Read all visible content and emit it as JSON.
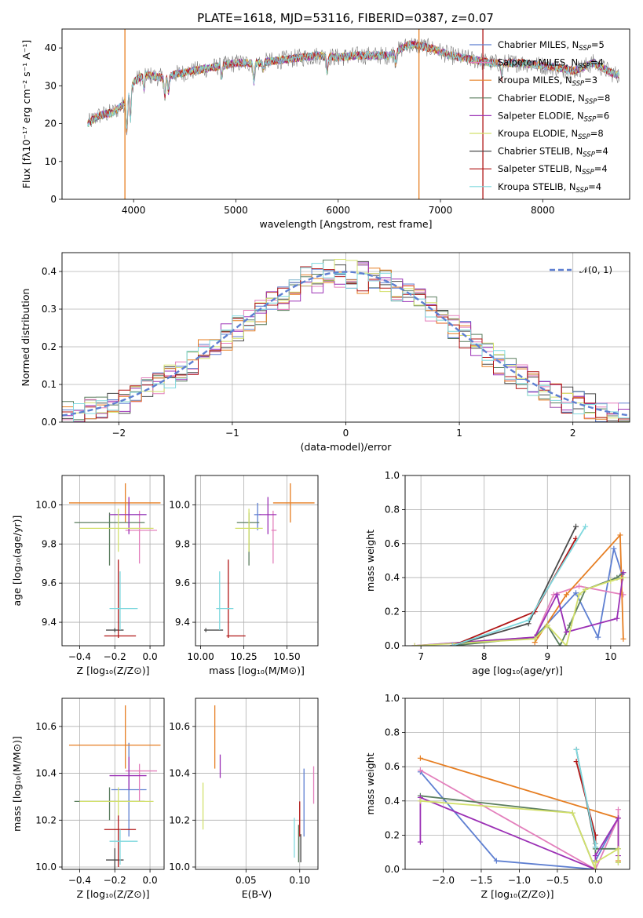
{
  "figure_title": "PLATE=1618, MJD=53116, FIBERID=0387, z=0.07",
  "colors": [
    "#5e7fd1",
    "#e37fbc",
    "#e67e22",
    "#5a7d5e",
    "#9b30b5",
    "#d2e06c",
    "#4a4a4a",
    "#b01515",
    "#7fd8de"
  ],
  "legend_entries": [
    {
      "pre": "Chabrier MILES, N",
      "sub": "SSP",
      "post": "=5"
    },
    {
      "pre": "Salpeter MILES, N",
      "sub": "SSP",
      "post": "=4"
    },
    {
      "pre": "Kroupa MILES, N",
      "sub": "SSP",
      "post": "=3"
    },
    {
      "pre": "Chabrier ELODIE, N",
      "sub": "SSP",
      "post": "=8"
    },
    {
      "pre": "Salpeter ELODIE, N",
      "sub": "SSP",
      "post": "=6"
    },
    {
      "pre": "Kroupa ELODIE, N",
      "sub": "SSP",
      "post": "=8"
    },
    {
      "pre": "Chabrier STELIB, N",
      "sub": "SSP",
      "post": "=4"
    },
    {
      "pre": "Salpeter STELIB, N",
      "sub": "SSP",
      "post": "=4"
    },
    {
      "pre": "Kroupa STELIB, N",
      "sub": "SSP",
      "post": "=4"
    }
  ],
  "chart_data": [
    {
      "id": "spectrum",
      "type": "line",
      "xlabel": "wavelength [Angstrom, rest frame]",
      "ylabel": "Flux [fλ10⁻¹⁷ erg cm⁻² s⁻¹ A⁻¹]",
      "xlim": [
        3300,
        8850
      ],
      "ylim": [
        0,
        45
      ],
      "xticks": [
        4000,
        5000,
        6000,
        7000,
        8000
      ],
      "yticks": [
        0,
        10,
        20,
        30,
        40
      ],
      "data_series": {
        "name": "data",
        "color": "#808080"
      },
      "continuum": {
        "x": [
          3550,
          3650,
          3800,
          3900,
          4000,
          4100,
          4300,
          4400,
          4600,
          4800,
          5000,
          5200,
          5500,
          5800,
          6000,
          6200,
          6500,
          6700,
          6900,
          7100,
          7300,
          7500,
          7800,
          8100,
          8300,
          8500,
          8700
        ],
        "y": [
          20,
          22,
          23,
          25,
          31,
          33,
          32,
          33,
          34,
          35,
          36,
          36,
          37,
          38,
          37.5,
          38,
          38,
          41,
          40,
          38,
          37,
          36,
          36,
          35,
          34,
          36,
          33
        ]
      },
      "absorption_lines": [
        {
          "x": 3934,
          "depth": 9
        },
        {
          "x": 3969,
          "depth": 8
        },
        {
          "x": 4101,
          "depth": 4
        },
        {
          "x": 4305,
          "depth": 5
        },
        {
          "x": 4340,
          "depth": 4
        },
        {
          "x": 4861,
          "depth": 3
        },
        {
          "x": 5175,
          "depth": 5
        },
        {
          "x": 5270,
          "depth": 2
        },
        {
          "x": 5892,
          "depth": 4
        },
        {
          "x": 6563,
          "depth": 3
        },
        {
          "x": 7600,
          "depth": 4
        }
      ],
      "model_spikes": [
        {
          "x": 3915,
          "color": "#e67e22"
        },
        {
          "x": 6790,
          "color": "#e67e22"
        },
        {
          "x": 7415,
          "color": "#b01515"
        }
      ]
    },
    {
      "id": "residuals",
      "type": "histogram",
      "xlabel": "(data-model)/error",
      "ylabel": "Normed distribution",
      "xlim": [
        -2.5,
        2.5
      ],
      "ylim": [
        0,
        0.45
      ],
      "xticks": [
        -2,
        -1,
        0,
        1,
        2
      ],
      "yticks": [
        0.0,
        0.1,
        0.2,
        0.3,
        0.4
      ],
      "bins": 50,
      "normal_curve": {
        "label": "𝒩(0, 1)",
        "color": "#5e7fd1",
        "mu": 0,
        "sigma": 1
      }
    },
    {
      "id": "age_vs_Z",
      "type": "errorbar",
      "xlabel": "Z [log₁₀(Z/Z⊙)]",
      "ylabel": "age  [log₁₀(age/yr)]",
      "xlim": [
        -0.5,
        0.08
      ],
      "ylim": [
        9.28,
        10.15
      ],
      "xticks": [
        -0.4,
        -0.2,
        0.0
      ],
      "yticks": [
        9.4,
        9.6,
        9.8,
        10.0
      ],
      "points": [
        {
          "x": -0.12,
          "xerr": [
            0.1,
            0.1
          ],
          "y": 9.95,
          "yerr": [
            0.08,
            0.06
          ]
        },
        {
          "x": -0.06,
          "xerr": [
            0.08,
            0.1
          ],
          "y": 9.87,
          "yerr": [
            0.17,
            0.1
          ]
        },
        {
          "x": -0.14,
          "xerr": [
            0.32,
            0.2
          ],
          "y": 10.01,
          "yerr": [
            0.1,
            0.1
          ]
        },
        {
          "x": -0.23,
          "xerr": [
            0.2,
            0.2
          ],
          "y": 9.91,
          "yerr": [
            0.22,
            0.05
          ]
        },
        {
          "x": -0.12,
          "xerr": [
            0.11,
            0.1
          ],
          "y": 9.95,
          "yerr": [
            0.1,
            0.09
          ]
        },
        {
          "x": -0.18,
          "xerr": [
            0.22,
            0.2
          ],
          "y": 9.88,
          "yerr": [
            0.12,
            0.1
          ]
        },
        {
          "x": -0.2,
          "xerr": [
            0.05,
            0.05
          ],
          "y": 9.36,
          "yerr": [
            0.01,
            0.01
          ]
        },
        {
          "x": -0.18,
          "xerr": [
            0.08,
            0.1
          ],
          "y": 9.33,
          "yerr": [
            0.01,
            0.39
          ]
        },
        {
          "x": -0.17,
          "xerr": [
            0.06,
            0.1
          ],
          "y": 9.47,
          "yerr": [
            0.11,
            0.19
          ]
        }
      ]
    },
    {
      "id": "age_vs_mass",
      "type": "errorbar",
      "xlabel": "mass [log₁₀(M/M⊙)]",
      "ylabel": "",
      "xlim": [
        9.97,
        10.68
      ],
      "ylim": [
        9.28,
        10.15
      ],
      "xticks": [
        10.0,
        10.25,
        10.5
      ],
      "yticks": [
        9.4,
        9.6,
        9.8,
        10.0
      ],
      "points": [
        {
          "x": 10.33,
          "xerr": [
            0.02,
            0.02
          ],
          "y": 9.95,
          "yerr": [
            0.08,
            0.06
          ]
        },
        {
          "x": 10.42,
          "xerr": [
            0.01,
            0.02
          ],
          "y": 9.87,
          "yerr": [
            0.17,
            0.1
          ]
        },
        {
          "x": 10.52,
          "xerr": [
            0.1,
            0.14
          ],
          "y": 10.01,
          "yerr": [
            0.1,
            0.1
          ]
        },
        {
          "x": 10.28,
          "xerr": [
            0.07,
            0.06
          ],
          "y": 9.91,
          "yerr": [
            0.22,
            0.05
          ]
        },
        {
          "x": 10.39,
          "xerr": [
            0.05,
            0.05
          ],
          "y": 9.95,
          "yerr": [
            0.1,
            0.09
          ]
        },
        {
          "x": 10.28,
          "xerr": [
            0.08,
            0.08
          ],
          "y": 9.88,
          "yerr": [
            0.12,
            0.1
          ]
        },
        {
          "x": 10.03,
          "xerr": [
            0.01,
            0.1
          ],
          "y": 9.36,
          "yerr": [
            0.01,
            0.01
          ]
        },
        {
          "x": 10.16,
          "xerr": [
            0.01,
            0.1
          ],
          "y": 9.33,
          "yerr": [
            0.01,
            0.39
          ]
        },
        {
          "x": 10.11,
          "xerr": [
            0.02,
            0.08
          ],
          "y": 9.47,
          "yerr": [
            0.11,
            0.19
          ]
        }
      ]
    },
    {
      "id": "mass_weight_vs_age",
      "type": "line",
      "xlabel": "age  [log₁₀(age/yr)]",
      "ylabel": "mass weight",
      "xlim": [
        6.75,
        10.3
      ],
      "ylim": [
        0,
        1.0
      ],
      "xticks": [
        7,
        8,
        9,
        10
      ],
      "yticks": [
        0.0,
        0.2,
        0.4,
        0.6,
        0.8,
        1.0
      ],
      "series": [
        {
          "x": [
            8.8,
            9.45,
            9.8,
            10.05,
            10.18
          ],
          "y": [
            0.05,
            0.31,
            0.05,
            0.57,
            0.42
          ]
        },
        {
          "x": [
            6.9,
            8.8,
            9.1,
            9.5,
            10.2
          ],
          "y": [
            0.0,
            0.05,
            0.3,
            0.35,
            0.3
          ]
        },
        {
          "x": [
            8.8,
            9.3,
            10.15,
            10.2
          ],
          "y": [
            0.02,
            0.3,
            0.65,
            0.04
          ]
        },
        {
          "x": [
            7.5,
            8.8,
            9.0,
            9.2,
            9.35,
            9.6,
            10.1,
            10.2
          ],
          "y": [
            0.0,
            0.05,
            0.12,
            0.0,
            0.12,
            0.33,
            0.4,
            0.43
          ]
        },
        {
          "x": [
            6.9,
            8.8,
            9.15,
            9.3,
            10.1,
            10.2
          ],
          "y": [
            0.0,
            0.05,
            0.3,
            0.08,
            0.16,
            0.43
          ]
        },
        {
          "x": [
            6.9,
            8.8,
            9.0,
            9.3,
            9.5,
            9.6,
            10.0,
            10.2
          ],
          "y": [
            0.0,
            0.04,
            0.12,
            0.0,
            0.3,
            0.33,
            0.38,
            0.4
          ]
        },
        {
          "x": [
            7.5,
            8.7,
            9.45
          ],
          "y": [
            0.0,
            0.13,
            0.7
          ]
        },
        {
          "x": [
            7.5,
            8.8,
            9.45
          ],
          "y": [
            0.0,
            0.2,
            0.63
          ]
        },
        {
          "x": [
            7.5,
            8.7,
            9.6
          ],
          "y": [
            0.0,
            0.15,
            0.7
          ]
        }
      ]
    },
    {
      "id": "mass_vs_Z",
      "type": "errorbar",
      "xlabel": "Z [log₁₀(Z/Z⊙)]",
      "ylabel": "mass [log₁₀(M/M⊙)]",
      "xlim": [
        -0.5,
        0.08
      ],
      "ylim": [
        9.99,
        10.72
      ],
      "xticks": [
        -0.4,
        -0.2,
        0.0
      ],
      "yticks": [
        10.0,
        10.2,
        10.4,
        10.6
      ],
      "points": [
        {
          "x": -0.12,
          "xerr": [
            0.1,
            0.1
          ],
          "y": 10.33,
          "yerr": [
            0.2,
            0.2
          ]
        },
        {
          "x": -0.06,
          "xerr": [
            0.08,
            0.1
          ],
          "y": 10.41,
          "yerr": [
            0.13,
            0.03
          ]
        },
        {
          "x": -0.14,
          "xerr": [
            0.32,
            0.2
          ],
          "y": 10.52,
          "yerr": [
            0.1,
            0.17
          ]
        },
        {
          "x": -0.23,
          "xerr": [
            0.2,
            0.2
          ],
          "y": 10.28,
          "yerr": [
            0.08,
            0.06
          ]
        },
        {
          "x": -0.12,
          "xerr": [
            0.11,
            0.1
          ],
          "y": 10.39,
          "yerr": [
            0.06,
            0.08
          ]
        },
        {
          "x": -0.18,
          "xerr": [
            0.22,
            0.2
          ],
          "y": 10.28,
          "yerr": [
            0.06,
            0.06
          ]
        },
        {
          "x": -0.2,
          "xerr": [
            0.05,
            0.05
          ],
          "y": 10.03,
          "yerr": [
            0.05,
            0.05
          ]
        },
        {
          "x": -0.18,
          "xerr": [
            0.08,
            0.1
          ],
          "y": 10.16,
          "yerr": [
            0.16,
            0.06
          ]
        },
        {
          "x": -0.17,
          "xerr": [
            0.06,
            0.1
          ],
          "y": 10.11,
          "yerr": [
            0.1,
            0.05
          ]
        }
      ]
    },
    {
      "id": "mass_vs_ebv",
      "type": "errorbar",
      "xlabel": "E(B-V)",
      "ylabel": "",
      "xlim": [
        0.003,
        0.117
      ],
      "ylim": [
        9.99,
        10.72
      ],
      "xticks": [
        0.05,
        0.1
      ],
      "yticks": [
        10.0,
        10.2,
        10.4,
        10.6
      ],
      "points": [
        {
          "x": 0.104,
          "xerr": [
            0.0,
            0.0
          ],
          "y": 10.33,
          "yerr": [
            0.2,
            0.09
          ]
        },
        {
          "x": 0.113,
          "xerr": [
            0.0,
            0.0
          ],
          "y": 10.35,
          "yerr": [
            0.08,
            0.08
          ]
        },
        {
          "x": 0.021,
          "xerr": [
            0.0,
            0.0
          ],
          "y": 10.55,
          "yerr": [
            0.13,
            0.14
          ]
        },
        {
          "x": 0.099,
          "xerr": [
            0.0,
            0.0
          ],
          "y": 10.1,
          "yerr": [
            0.08,
            0.08
          ]
        },
        {
          "x": 0.026,
          "xerr": [
            0.0,
            0.0
          ],
          "y": 10.43,
          "yerr": [
            0.05,
            0.05
          ]
        },
        {
          "x": 0.01,
          "xerr": [
            0.0,
            0.0
          ],
          "y": 10.26,
          "yerr": [
            0.1,
            0.1
          ]
        },
        {
          "x": 0.101,
          "xerr": [
            0.0,
            0.0
          ],
          "y": 10.07,
          "yerr": [
            0.05,
            0.07
          ]
        },
        {
          "x": 0.1,
          "xerr": [
            0.0,
            0.0
          ],
          "y": 10.18,
          "yerr": [
            0.05,
            0.1
          ]
        },
        {
          "x": 0.095,
          "xerr": [
            0.0,
            0.0
          ],
          "y": 10.14,
          "yerr": [
            0.1,
            0.07
          ]
        }
      ]
    },
    {
      "id": "mass_weight_vs_Z",
      "type": "line",
      "xlabel": "Z [log₁₀(Z/Z⊙)]",
      "ylabel": "mass weight",
      "xlim": [
        -2.5,
        0.45
      ],
      "ylim": [
        0,
        1.0
      ],
      "xticks": [
        -2.0,
        -1.5,
        -1.0,
        -0.5,
        0.0
      ],
      "yticks": [
        0.0,
        0.2,
        0.4,
        0.6,
        0.8,
        1.0
      ],
      "series": [
        {
          "x": [
            -2.3,
            -1.3,
            0.0,
            0.0,
            0.3
          ],
          "y": [
            0.57,
            0.05,
            0.0,
            0.05,
            0.3
          ]
        },
        {
          "x": [
            -2.3,
            0.0,
            0.3,
            0.3
          ],
          "y": [
            0.58,
            0.0,
            0.3,
            0.35
          ]
        },
        {
          "x": [
            -2.3,
            0.3,
            0.3
          ],
          "y": [
            0.65,
            0.3,
            0.05
          ]
        },
        {
          "x": [
            -2.3,
            -0.3,
            0.0,
            0.0,
            0.3,
            0.3
          ],
          "y": [
            0.43,
            0.33,
            0.0,
            0.12,
            0.12,
            0.04
          ]
        },
        {
          "x": [
            -2.3,
            -2.3,
            0.0,
            0.0,
            0.3,
            0.3
          ],
          "y": [
            0.16,
            0.42,
            0.0,
            0.08,
            0.3,
            0.08
          ]
        },
        {
          "x": [
            -2.3,
            -0.3,
            0.0,
            0.0,
            0.3,
            0.3
          ],
          "y": [
            0.4,
            0.33,
            0.0,
            0.04,
            0.12,
            0.04
          ]
        },
        {
          "x": [
            -0.25,
            0.0,
            0.0
          ],
          "y": [
            0.7,
            0.13,
            0.2
          ]
        },
        {
          "x": [
            -0.25,
            0.0,
            0.0
          ],
          "y": [
            0.63,
            0.2,
            0.15
          ]
        },
        {
          "x": [
            -0.25,
            0.0,
            0.0
          ],
          "y": [
            0.7,
            0.15,
            0.13
          ]
        }
      ]
    }
  ]
}
